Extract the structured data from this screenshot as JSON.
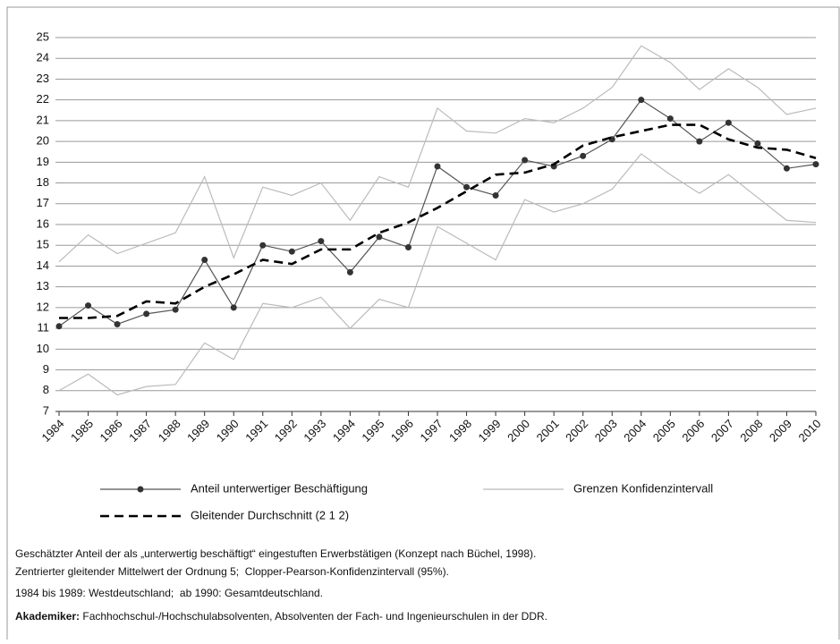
{
  "chart_data": {
    "type": "line",
    "categories": [
      "1984",
      "1985",
      "1986",
      "1987",
      "1988",
      "1989",
      "1990",
      "1991",
      "1992",
      "1993",
      "1994",
      "1995",
      "1996",
      "1997",
      "1998",
      "1999",
      "2000",
      "2001",
      "2002",
      "2003",
      "2004",
      "2005",
      "2006",
      "2007",
      "2008",
      "2009",
      "2010"
    ],
    "series": [
      {
        "name": "Anteil unterwertiger Beschäftigung",
        "color": "#555555",
        "style": "solid-markers",
        "values": [
          11.1,
          12.1,
          11.2,
          11.7,
          11.9,
          14.3,
          12.0,
          15.0,
          14.7,
          15.2,
          13.7,
          15.4,
          14.9,
          18.8,
          17.8,
          17.4,
          19.1,
          18.8,
          19.3,
          20.1,
          22.0,
          21.1,
          20.0,
          20.9,
          19.9,
          18.7,
          18.9
        ]
      },
      {
        "name": "Gleitender Durchschnitt (2 1 2)",
        "color": "#000000",
        "style": "dashed",
        "values": [
          11.5,
          11.5,
          11.6,
          12.3,
          12.2,
          13.0,
          13.6,
          14.3,
          14.1,
          14.8,
          14.8,
          15.6,
          16.1,
          16.8,
          17.6,
          18.4,
          18.5,
          18.9,
          19.8,
          20.2,
          20.5,
          20.8,
          20.8,
          20.1,
          19.7,
          19.6,
          19.2
        ]
      },
      {
        "name": "Grenzen Konfidenzintervall",
        "color": "#bbbbbb",
        "style": "band",
        "upper": [
          14.2,
          15.5,
          14.6,
          15.1,
          15.6,
          18.3,
          14.4,
          17.8,
          17.4,
          18.0,
          16.2,
          18.3,
          17.8,
          21.6,
          20.5,
          20.4,
          21.1,
          20.9,
          21.6,
          22.6,
          24.6,
          23.8,
          22.5,
          23.5,
          22.6,
          21.3,
          21.6
        ],
        "lower": [
          8.0,
          8.8,
          7.8,
          8.2,
          8.3,
          10.3,
          9.5,
          12.2,
          12.0,
          12.5,
          11.0,
          12.4,
          12.0,
          15.9,
          15.1,
          14.3,
          17.2,
          16.6,
          17.0,
          17.7,
          19.4,
          18.4,
          17.5,
          18.4,
          17.3,
          16.2,
          16.1
        ]
      }
    ],
    "ylim": [
      7,
      25
    ],
    "yticks": [
      7,
      8,
      9,
      10,
      11,
      12,
      13,
      14,
      15,
      16,
      17,
      18,
      19,
      20,
      21,
      22,
      23,
      24,
      25
    ],
    "grid": true,
    "notes": [
      {
        "text": "Geschätzter Anteil der als „unterwertig beschäftigt“ eingestuften Erwerbstätigen (Konzept nach Büchel, 1998)."
      },
      {
        "text": "Zentrierter gleitender Mittelwert der Ordnung 5;  Clopper-Pearson-Konfidenzintervall (95%)."
      },
      {
        "text": "1984 bis 1989: Westdeutschland;  ab 1990: Gesamtdeutschland."
      },
      {
        "bold": "Akademiker:",
        "text": " Fachhochschul-/Hochschulabsolventen, Absolventen der Fach- und Ingenieurschulen in der DDR."
      }
    ]
  }
}
